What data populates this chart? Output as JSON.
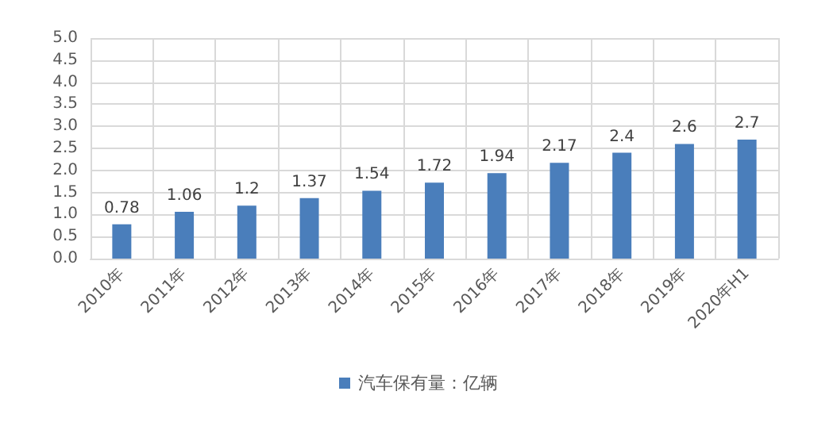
{
  "chart_data": {
    "type": "bar",
    "categories": [
      "2010年",
      "2011年",
      "2012年",
      "2013年",
      "2014年",
      "2015年",
      "2016年",
      "2017年",
      "2018年",
      "2019年",
      "2020年H1"
    ],
    "series": [
      {
        "name": "汽车保有量：亿辆",
        "color": "#4a7ebb",
        "values": [
          0.78,
          1.06,
          1.2,
          1.37,
          1.54,
          1.72,
          1.94,
          2.17,
          2.4,
          2.6,
          2.7
        ]
      }
    ],
    "ylim": [
      0,
      5
    ],
    "yticks": [
      {
        "value": 0,
        "label": "0.0"
      },
      {
        "value": 0.5,
        "label": "0.5"
      },
      {
        "value": 1,
        "label": "1.0"
      },
      {
        "value": 1.5,
        "label": "1.5"
      },
      {
        "value": 2,
        "label": "2.0"
      },
      {
        "value": 2.5,
        "label": "2.5"
      },
      {
        "value": 3,
        "label": "3.0"
      },
      {
        "value": 3.5,
        "label": "3.5"
      },
      {
        "value": 4,
        "label": "4.0"
      },
      {
        "value": 4.5,
        "label": "4.5"
      },
      {
        "value": 5,
        "label": "5.0"
      }
    ],
    "grid": true,
    "legend": "bottom",
    "data_labels": true
  }
}
